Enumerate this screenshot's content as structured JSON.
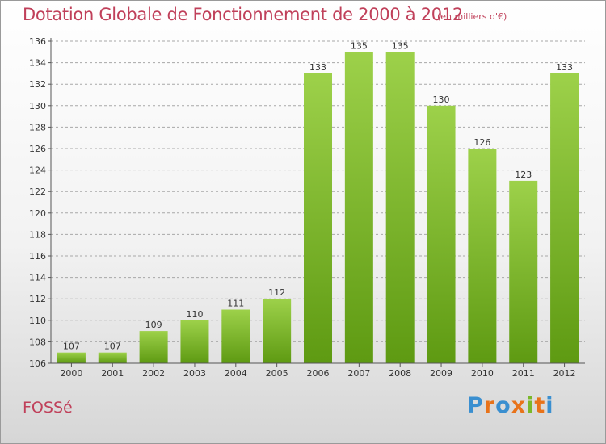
{
  "chart_data": {
    "type": "bar",
    "title": "Dotation Globale de Fonctionnement de 2000 à 2012",
    "subtitle": "(en milliers d'€)",
    "categories": [
      "2000",
      "2001",
      "2002",
      "2003",
      "2004",
      "2005",
      "2006",
      "2007",
      "2008",
      "2009",
      "2010",
      "2011",
      "2012"
    ],
    "values": [
      107,
      107,
      109,
      110,
      111,
      112,
      133,
      135,
      135,
      130,
      126,
      123,
      133
    ],
    "ylim": [
      106,
      136
    ],
    "yticks": [
      106,
      108,
      110,
      112,
      114,
      116,
      118,
      120,
      122,
      124,
      126,
      128,
      130,
      132,
      134,
      136
    ],
    "grid": true,
    "colors": {
      "bar_top": "#9dd14a",
      "bar_bottom": "#5e9a12",
      "grid": "#a8a8a8"
    }
  },
  "footer": {
    "city": "FOSSé",
    "logo_letters": [
      "P",
      "r",
      "o",
      "x",
      "i",
      "t",
      "i"
    ],
    "logo_colors": [
      "#3a8fd0",
      "#e8731a",
      "#3a8fd0",
      "#e8731a",
      "#7ab82a",
      "#e8731a",
      "#3a8fd0"
    ]
  }
}
